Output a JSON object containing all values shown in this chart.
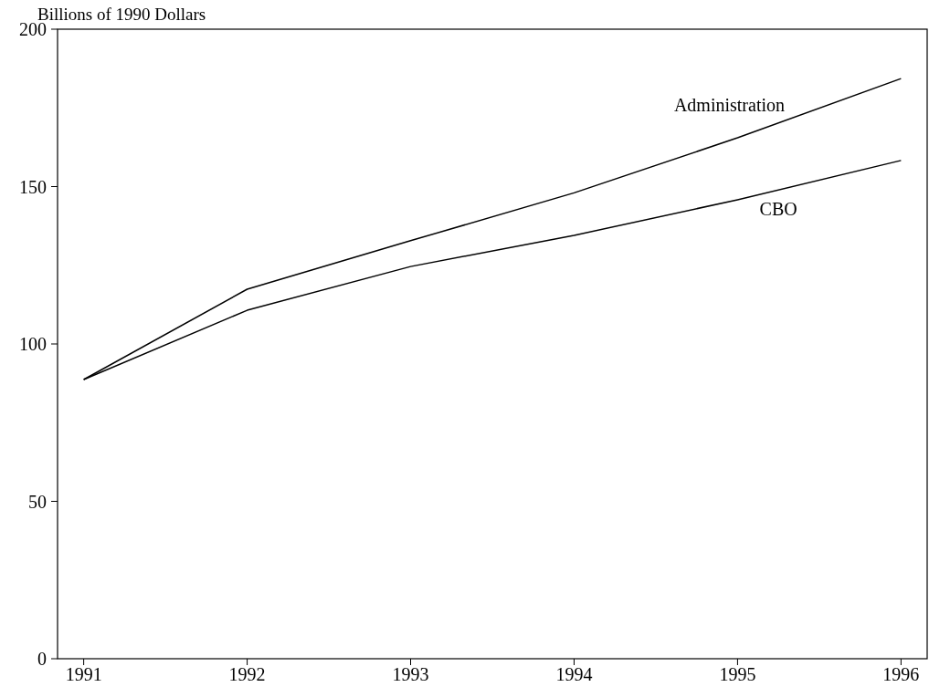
{
  "chart_data": {
    "type": "line",
    "ylabel": "Billions of 1990 Dollars",
    "x": [
      1991,
      1992,
      1993,
      1994,
      1995,
      1996
    ],
    "series": [
      {
        "name": "Administration",
        "color": "#000000",
        "values": [
          88.7,
          117.4,
          132.8,
          148,
          165.5,
          184.3
        ]
      },
      {
        "name": "CBO",
        "color": "#000000",
        "values": [
          88.7,
          110.7,
          124.6,
          134.5,
          145.8,
          158.3
        ]
      }
    ],
    "xlim": [
      1990.84,
      1996.16
    ],
    "xticks": [
      1991,
      1992,
      1993,
      1994,
      1995,
      1996
    ],
    "ylim": [
      0,
      200
    ],
    "yticks": [
      0,
      50,
      100,
      150,
      200
    ],
    "grid": false,
    "marker": "none",
    "line_style": "solid"
  }
}
